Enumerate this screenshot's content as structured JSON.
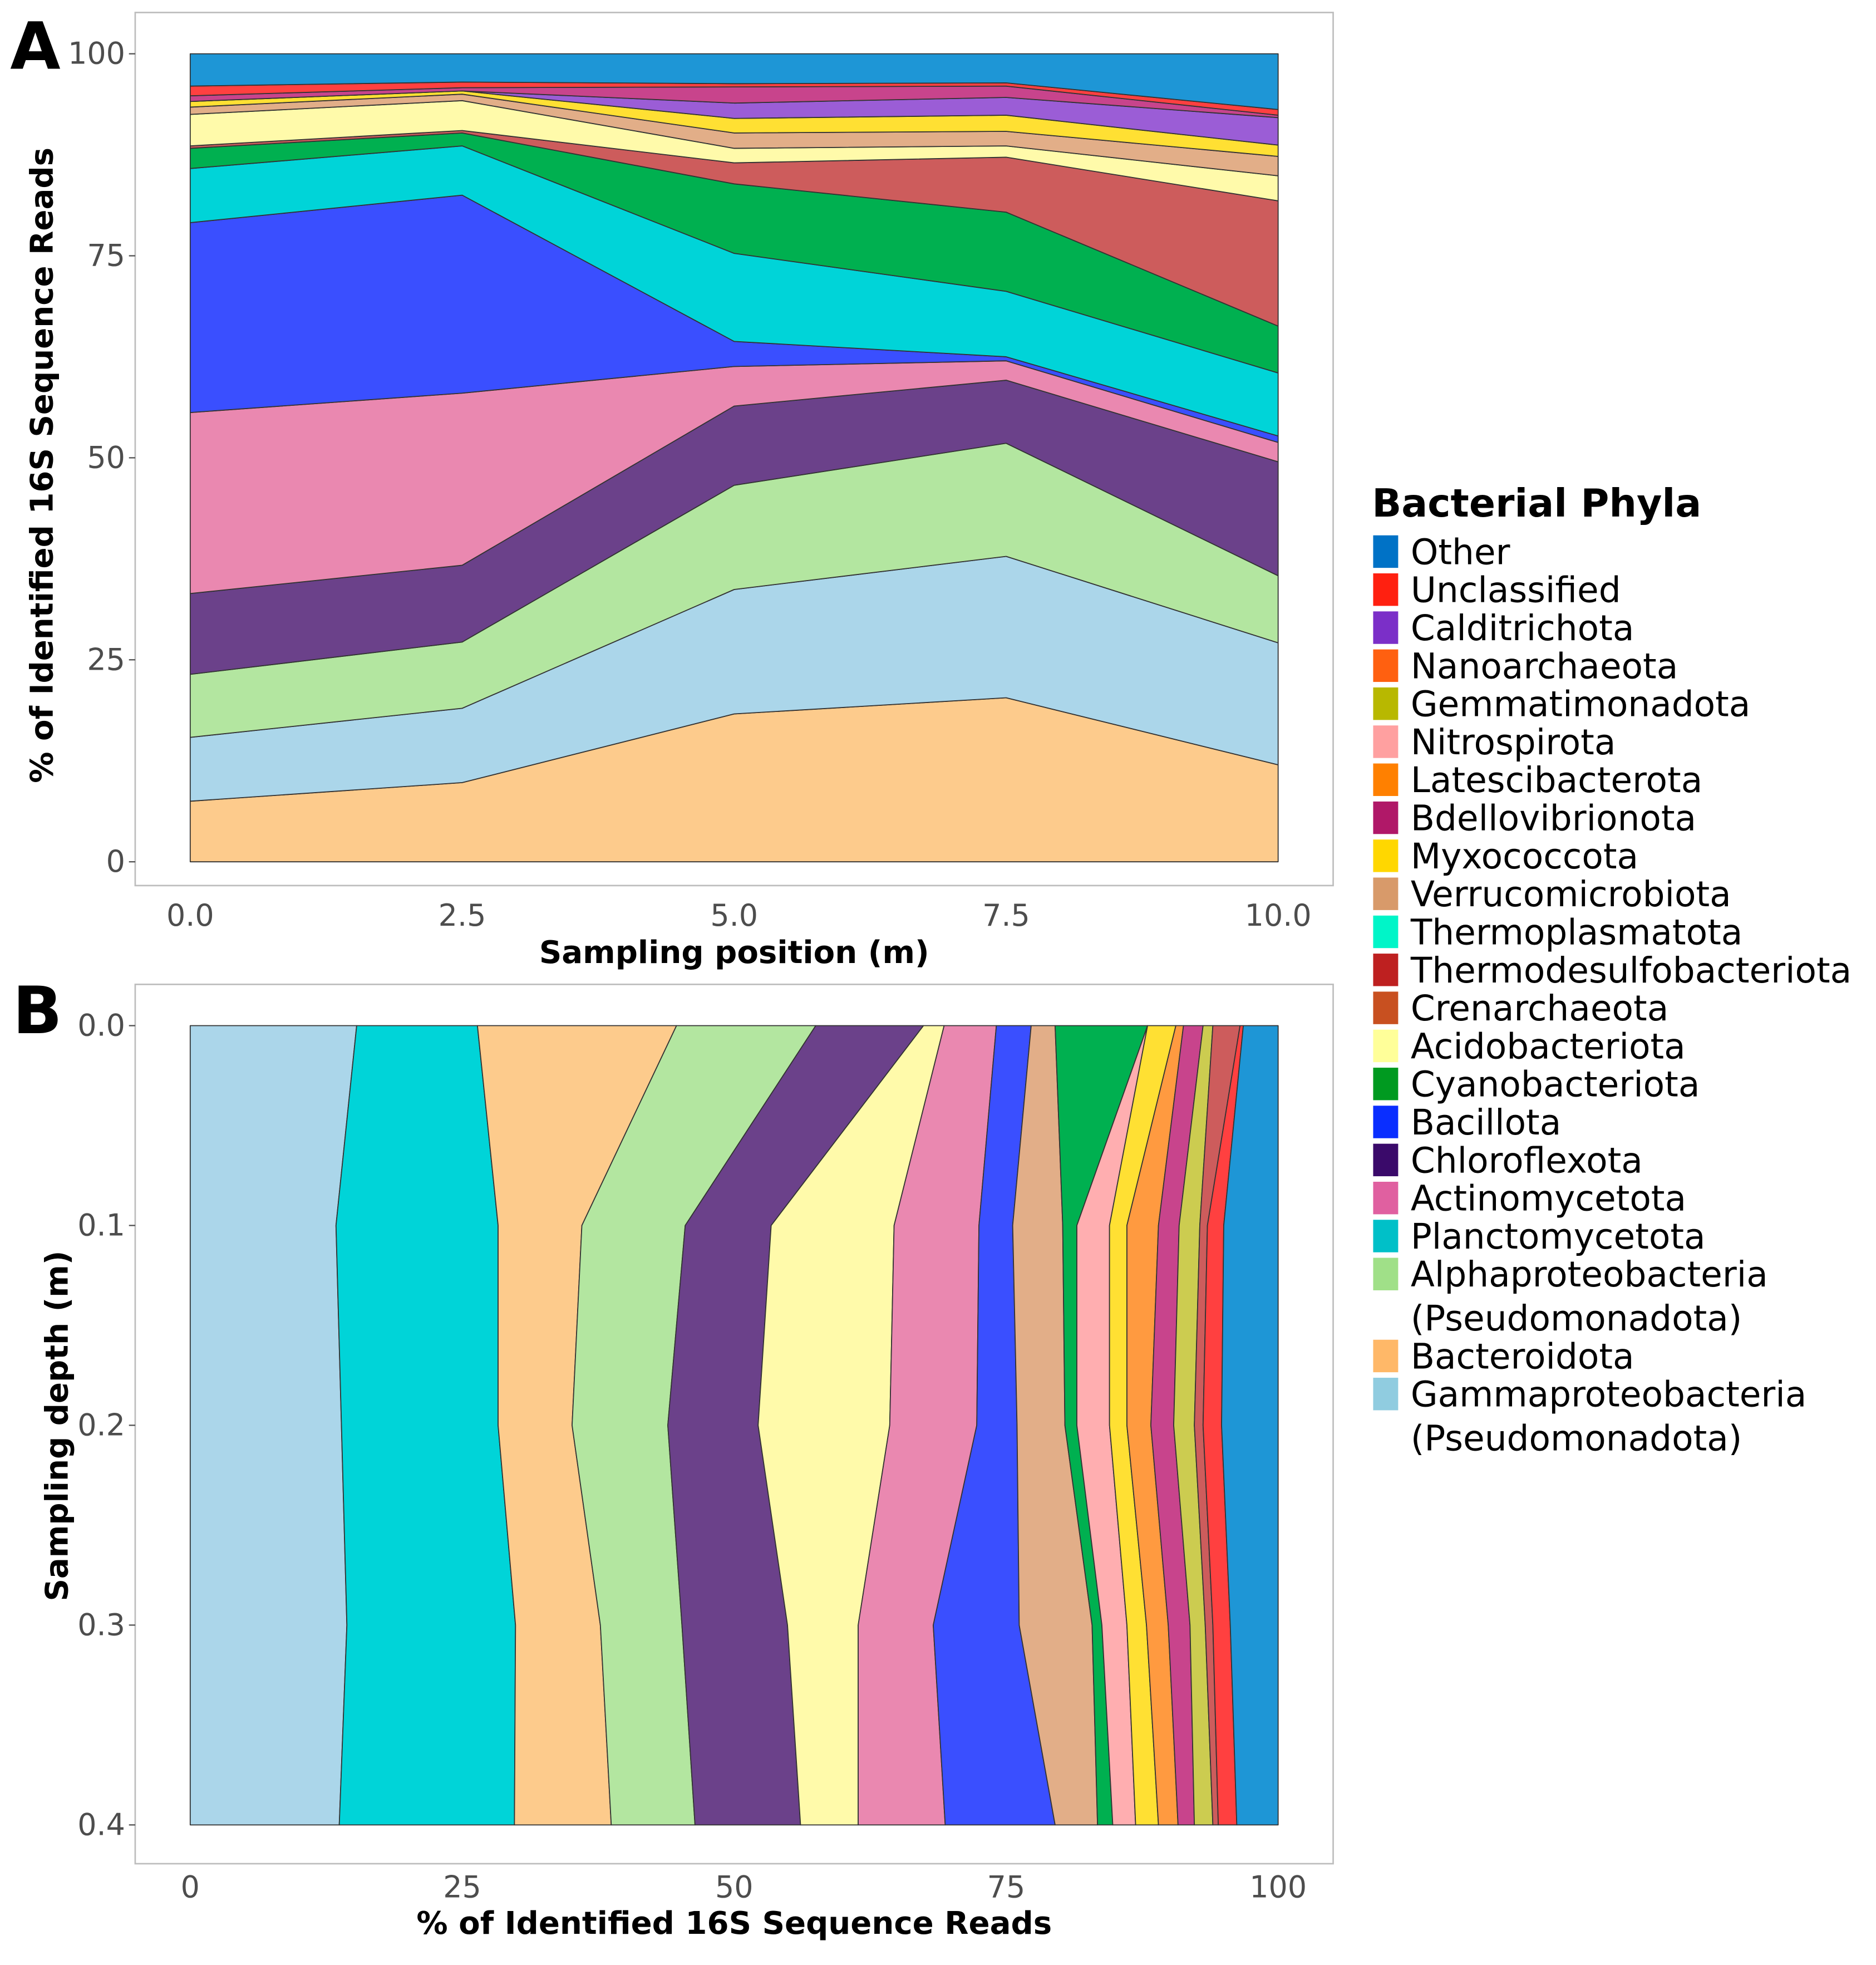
{
  "colors": {
    "Other": "#1E96D6",
    "Unclassified": "#FF4040",
    "Calditrichota": "#9B5DD6",
    "Nanoarchaeota": "#FF6010",
    "Gemmatimonadota": "#CCCC50",
    "Nitrospirota": "#FFAEB0",
    "Latescibacterota": "#FF9A40",
    "Bdellovibrionota": "#C8448C",
    "Myxococcota": "#FFE033",
    "Verrucomicrobiota": "#E2AE88",
    "Thermoplasmatota": "#00F5C8",
    "Thermodesulfobacteriota": "#CD5C5C",
    "Crenarchaeota": "#C85020",
    "Acidobacteriota": "#FFFAAA",
    "Cyanobacteriota": "#00B050",
    "Bacillota": "#3A4FFF",
    "Chloroflexota": "#6B418A",
    "Actinomycetota": "#EA88B0",
    "Planctomycetota": "#00D4D8",
    "Alphaproteobacteria (Pseudomonadota)": "#B3E6A0",
    "Bacteroidota": "#FDCB8C",
    "Gammaproteobacteria (Pseudomonadota)": "#ABD6EA"
  },
  "legend": {
    "title": "Bacterial Phyla",
    "items": [
      {
        "label": "Other",
        "color": "#0072C6"
      },
      {
        "label": "Unclassified",
        "color": "#FF2010"
      },
      {
        "label": "Calditrichota",
        "color": "#7B2FC8"
      },
      {
        "label": "Nanoarchaeota",
        "color": "#FF6010"
      },
      {
        "label": "Gemmatimonadota",
        "color": "#B8B800"
      },
      {
        "label": "Nitrospirota",
        "color": "#FFA0A0"
      },
      {
        "label": "Latescibacterota",
        "color": "#FF8000"
      },
      {
        "label": "Bdellovibrionota",
        "color": "#B01868"
      },
      {
        "label": "Myxococcota",
        "color": "#FFD700"
      },
      {
        "label": "Verrucomicrobiota",
        "color": "#D89A6A"
      },
      {
        "label": "Thermoplasmatota",
        "color": "#00F5C8"
      },
      {
        "label": "Thermodesulfobacteriota",
        "color": "#BE2020"
      },
      {
        "label": "Crenarchaeota",
        "color": "#C85020"
      },
      {
        "label": "Acidobacteriota",
        "color": "#FFFF99"
      },
      {
        "label": "Cyanobacteriota",
        "color": "#009A20"
      },
      {
        "label": "Bacillota",
        "color": "#0A2EFF"
      },
      {
        "label": "Chloroflexota",
        "color": "#3A0A6A"
      },
      {
        "label": "Actinomycetota",
        "color": "#E060A0"
      },
      {
        "label": "Planctomycetota",
        "color": "#00C0C8"
      },
      {
        "label": "Alphaproteobacteria",
        "label2": "(Pseudomonadota)",
        "color": "#A0E088"
      },
      {
        "label": "Bacteroidota",
        "color": "#FFB868"
      },
      {
        "label": "Gammaproteobacteria",
        "label2": "(Pseudomonadota)",
        "color": "#90CCE0"
      }
    ]
  },
  "chart_data": [
    {
      "panel": "A",
      "type": "area",
      "stacked": true,
      "xlabel": "Sampling position (m)",
      "ylabel": "% of Identified 16S Sequence Reads",
      "x": [
        0.0,
        2.5,
        5.0,
        7.5,
        10.0
      ],
      "xticks": [
        "0.0",
        "2.5",
        "5.0",
        "7.5",
        "10.0"
      ],
      "yticks": [
        "0",
        "25",
        "50",
        "75",
        "100"
      ],
      "xlim": [
        0,
        10
      ],
      "ylim": [
        0,
        100
      ],
      "series": [
        {
          "name": "Bacteroidota",
          "values": [
            7.5,
            9.8,
            18.3,
            20.3,
            12.0
          ]
        },
        {
          "name": "Gammaproteobacteria (Pseudomonadota)",
          "values": [
            7.9,
            9.2,
            15.4,
            17.5,
            15.1
          ]
        },
        {
          "name": "Alphaproteobacteria (Pseudomonadota)",
          "values": [
            7.8,
            8.2,
            12.9,
            14.0,
            8.3
          ]
        },
        {
          "name": "Chloroflexota",
          "values": [
            10.0,
            9.5,
            9.8,
            7.8,
            14.1
          ]
        },
        {
          "name": "Actinomycetota",
          "values": [
            22.4,
            21.3,
            4.9,
            2.4,
            2.4
          ]
        },
        {
          "name": "Bacillota",
          "values": [
            23.5,
            24.5,
            3.1,
            0.5,
            0.8
          ]
        },
        {
          "name": "Planctomycetota",
          "values": [
            6.7,
            6.1,
            10.9,
            8.1,
            7.8
          ]
        },
        {
          "name": "Cyanobacteriota",
          "values": [
            2.5,
            1.6,
            8.6,
            9.8,
            5.8
          ]
        },
        {
          "name": "Thermodesulfobacteriota",
          "values": [
            0.3,
            0.3,
            2.6,
            6.8,
            15.5
          ]
        },
        {
          "name": "Acidobacteriota",
          "values": [
            3.9,
            3.7,
            1.8,
            1.4,
            3.1
          ]
        },
        {
          "name": "Verrucomicrobiota",
          "values": [
            0.9,
            0.8,
            1.9,
            1.8,
            2.4
          ]
        },
        {
          "name": "Myxococcota",
          "values": [
            0.7,
            0.4,
            1.8,
            2.0,
            1.4
          ]
        },
        {
          "name": "Calditrichota",
          "values": [
            0.0,
            0.0,
            1.9,
            2.2,
            3.4
          ]
        },
        {
          "name": "Bdellovibrionota",
          "values": [
            0.7,
            0.4,
            2.0,
            1.4,
            0.3
          ]
        },
        {
          "name": "Unclassified",
          "values": [
            1.2,
            0.7,
            0.4,
            0.4,
            0.7
          ]
        },
        {
          "name": "Other",
          "values": [
            4.0,
            3.5,
            3.7,
            3.6,
            6.9
          ]
        }
      ]
    },
    {
      "panel": "B",
      "type": "area",
      "stacked": true,
      "orientation": "horizontal",
      "xlabel": "% of Identified 16S Sequence Reads",
      "ylabel": "Sampling depth (m)",
      "y": [
        0.0,
        0.1,
        0.2,
        0.3,
        0.4
      ],
      "xticks": [
        "0",
        "25",
        "50",
        "75",
        "100"
      ],
      "yticks": [
        "0.0",
        "0.1",
        "0.2",
        "0.3",
        "0.4"
      ],
      "xlim": [
        0,
        100
      ],
      "ylim": [
        0.4,
        0.0
      ],
      "series": [
        {
          "name": "Gammaproteobacteria (Pseudomonadota)",
          "values": [
            15.3,
            13.4,
            13.9,
            14.4,
            13.7
          ]
        },
        {
          "name": "Planctomycetota",
          "values": [
            11.1,
            14.9,
            14.4,
            15.5,
            16.1
          ]
        },
        {
          "name": "Bacteroidota",
          "values": [
            18.3,
            7.7,
            6.8,
            7.8,
            8.9
          ]
        },
        {
          "name": "Alphaproteobacteria (Pseudomonadota)",
          "values": [
            12.8,
            9.5,
            8.8,
            7.5,
            7.7
          ]
        },
        {
          "name": "Chloroflexota",
          "values": [
            9.9,
            7.9,
            8.3,
            9.7,
            9.7
          ]
        },
        {
          "name": "Acidobacteriota",
          "values": [
            1.9,
            11.3,
            12.1,
            6.5,
            5.3
          ]
        },
        {
          "name": "Actinomycetota",
          "values": [
            4.8,
            7.8,
            8.0,
            6.9,
            8.0
          ]
        },
        {
          "name": "Bacillota",
          "values": [
            3.2,
            3.1,
            3.7,
            7.9,
            10.1
          ]
        },
        {
          "name": "Verrucomicrobiota",
          "values": [
            2.2,
            4.6,
            4.4,
            6.7,
            3.9
          ]
        },
        {
          "name": "Cyanobacteriota",
          "values": [
            8.5,
            1.3,
            1.1,
            0.9,
            1.4
          ]
        },
        {
          "name": "Nitrospirota",
          "values": [
            0.0,
            3.0,
            3.0,
            2.3,
            2.1
          ]
        },
        {
          "name": "Myxococcota",
          "values": [
            2.6,
            1.6,
            1.6,
            1.8,
            2.1
          ]
        },
        {
          "name": "Latescibacterota",
          "values": [
            0.7,
            2.9,
            2.2,
            2.0,
            1.8
          ]
        },
        {
          "name": "Bdellovibrionota",
          "values": [
            1.8,
            1.9,
            2.1,
            2.0,
            1.5
          ]
        },
        {
          "name": "Gemmatimonadota",
          "values": [
            0.9,
            1.9,
            1.9,
            1.4,
            1.7
          ]
        },
        {
          "name": "Thermodesulfobacteriota",
          "values": [
            2.5,
            0.7,
            0.8,
            0.7,
            0.5
          ]
        },
        {
          "name": "Unclassified",
          "values": [
            0.3,
            1.5,
            1.7,
            1.6,
            1.7
          ]
        },
        {
          "name": "Other",
          "values": [
            3.2,
            5.0,
            5.2,
            4.4,
            3.8
          ]
        }
      ]
    }
  ]
}
